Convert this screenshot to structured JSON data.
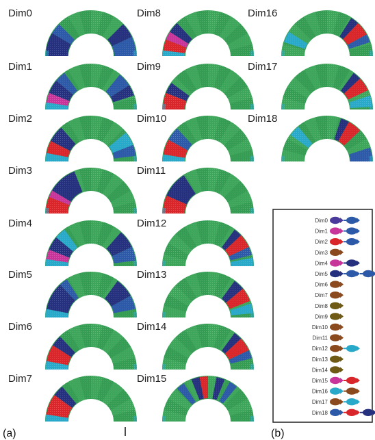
{
  "colors": {
    "base": "#3aa457",
    "navy": "#25307e",
    "blue": "#2d5aa8",
    "red": "#d9262b",
    "magenta": "#c8359a",
    "cyan": "#29a9c9",
    "teal": "#2f8f9a",
    "brown": "#8b4a1e",
    "olive": "#6e5a14",
    "purple": "#4a3a9c"
  },
  "panel_labels": {
    "a": "(a)",
    "b": "(b)"
  },
  "dims": [
    {
      "label": "Dim0",
      "bands": [
        [
          "navy",
          0,
          0.17
        ],
        [
          "blue",
          0.17,
          0.25
        ],
        [
          "navy",
          0.75,
          0.86
        ],
        [
          "blue",
          0.86,
          1.0
        ]
      ]
    },
    {
      "label": "Dim1",
      "bands": [
        [
          "cyan",
          0,
          0.05
        ],
        [
          "magenta",
          0.05,
          0.12
        ],
        [
          "navy",
          0.12,
          0.22
        ],
        [
          "blue",
          0.22,
          0.3
        ],
        [
          "blue",
          0.72,
          0.82
        ],
        [
          "navy",
          0.82,
          0.9
        ]
      ]
    },
    {
      "label": "Dim2",
      "bands": [
        [
          "cyan",
          0,
          0.06
        ],
        [
          "red",
          0.06,
          0.15
        ],
        [
          "navy",
          0.15,
          0.27
        ],
        [
          "cyan",
          0.78,
          0.88
        ],
        [
          "blue",
          0.88,
          0.96
        ]
      ]
    },
    {
      "label": "Dim3",
      "bands": [
        [
          "red",
          0,
          0.12
        ],
        [
          "magenta",
          0.12,
          0.17
        ],
        [
          "navy",
          0.17,
          0.38
        ]
      ]
    },
    {
      "label": "Dim4",
      "bands": [
        [
          "cyan",
          0,
          0.05
        ],
        [
          "magenta",
          0.05,
          0.12
        ],
        [
          "navy",
          0.12,
          0.22
        ],
        [
          "cyan",
          0.22,
          0.3
        ],
        [
          "navy",
          0.73,
          0.86
        ],
        [
          "blue",
          0.86,
          0.96
        ]
      ]
    },
    {
      "label": "Dim5",
      "bands": [
        [
          "cyan",
          0,
          0.06
        ],
        [
          "navy",
          0.06,
          0.26
        ],
        [
          "blue",
          0.26,
          0.32
        ],
        [
          "navy",
          0.7,
          0.84
        ],
        [
          "blue",
          0.84,
          0.94
        ]
      ]
    },
    {
      "label": "Dim6",
      "bands": [
        [
          "cyan",
          0,
          0.06
        ],
        [
          "red",
          0.06,
          0.18
        ],
        [
          "navy",
          0.18,
          0.26
        ]
      ]
    },
    {
      "label": "Dim7",
      "bands": [
        [
          "cyan",
          0,
          0.05
        ],
        [
          "red",
          0.05,
          0.2
        ],
        [
          "navy",
          0.2,
          0.28
        ]
      ]
    },
    {
      "label": "Dim8",
      "bands": [
        [
          "cyan",
          0,
          0.04
        ],
        [
          "red",
          0.04,
          0.12
        ],
        [
          "magenta",
          0.12,
          0.18
        ],
        [
          "navy",
          0.18,
          0.26
        ]
      ]
    },
    {
      "label": "Dim9",
      "bands": [
        [
          "red",
          0,
          0.12
        ],
        [
          "navy",
          0.12,
          0.2
        ]
      ]
    },
    {
      "label": "Dim10",
      "bands": [
        [
          "cyan",
          0,
          0.05
        ],
        [
          "red",
          0.05,
          0.16
        ],
        [
          "blue",
          0.16,
          0.26
        ]
      ]
    },
    {
      "label": "Dim11",
      "bands": [
        [
          "red",
          0,
          0.13
        ],
        [
          "navy",
          0.13,
          0.32
        ]
      ]
    },
    {
      "label": "Dim12",
      "bands": [
        [
          "navy",
          0.7,
          0.76
        ],
        [
          "red",
          0.76,
          0.86
        ],
        [
          "blue",
          0.86,
          0.92
        ],
        [
          "cyan",
          0.94,
          1.0
        ]
      ]
    },
    {
      "label": "Dim13",
      "bands": [
        [
          "navy",
          0.7,
          0.78
        ],
        [
          "red",
          0.78,
          0.88
        ],
        [
          "cyan",
          0.9,
          0.97
        ]
      ]
    },
    {
      "label": "Dim14",
      "bands": [
        [
          "navy",
          0.7,
          0.76
        ],
        [
          "red",
          0.76,
          0.86
        ],
        [
          "blue",
          0.86,
          0.92
        ]
      ]
    },
    {
      "label": "Dim15",
      "bands": [
        [
          "blue",
          0.26,
          0.32
        ],
        [
          "navy",
          0.38,
          0.44
        ],
        [
          "red",
          0.44,
          0.5
        ],
        [
          "navy",
          0.56,
          0.62
        ],
        [
          "blue",
          0.66,
          0.72
        ]
      ]
    },
    {
      "label": "Dim16",
      "bands": [
        [
          "cyan",
          0.1,
          0.18
        ],
        [
          "navy",
          0.68,
          0.74
        ],
        [
          "red",
          0.74,
          0.84
        ],
        [
          "blue",
          0.84,
          0.9
        ]
      ]
    },
    {
      "label": "Dim17",
      "bands": [
        [
          "navy",
          0.7,
          0.76
        ],
        [
          "red",
          0.76,
          0.86
        ],
        [
          "cyan",
          0.9,
          0.98
        ]
      ]
    },
    {
      "label": "Dim18",
      "bands": [
        [
          "cyan",
          0.2,
          0.28
        ],
        [
          "navy",
          0.6,
          0.66
        ],
        [
          "red",
          0.66,
          0.76
        ],
        [
          "blue",
          0.9,
          1.0
        ]
      ]
    }
  ],
  "legend": [
    {
      "label": "Dim0",
      "glyphs": [
        "purple",
        "blue"
      ]
    },
    {
      "label": "Dim1",
      "glyphs": [
        "magenta",
        "blue"
      ]
    },
    {
      "label": "Dim2",
      "glyphs": [
        "red",
        "blue"
      ]
    },
    {
      "label": "Dim3",
      "glyphs": [
        "brown"
      ]
    },
    {
      "label": "Dim4",
      "glyphs": [
        "magenta",
        "navy"
      ]
    },
    {
      "label": "Dim5",
      "glyphs": [
        "navy",
        "blue",
        "blue",
        "blue"
      ]
    },
    {
      "label": "Dim6",
      "glyphs": [
        "brown"
      ]
    },
    {
      "label": "Dim7",
      "glyphs": [
        "brown"
      ]
    },
    {
      "label": "Dim8",
      "glyphs": [
        "olive"
      ]
    },
    {
      "label": "Dim9",
      "glyphs": [
        "olive"
      ]
    },
    {
      "label": "Dim10",
      "glyphs": [
        "brown"
      ]
    },
    {
      "label": "Dim11",
      "glyphs": [
        "brown"
      ]
    },
    {
      "label": "Dim12",
      "glyphs": [
        "brown",
        "cyan"
      ]
    },
    {
      "label": "Dim13",
      "glyphs": [
        "olive"
      ]
    },
    {
      "label": "Dim14",
      "glyphs": [
        "olive"
      ]
    },
    {
      "label": "Dim15",
      "glyphs": [
        "magenta",
        "red"
      ]
    },
    {
      "label": "Dim16",
      "glyphs": [
        "cyan",
        "brown"
      ]
    },
    {
      "label": "Dim17",
      "glyphs": [
        "brown",
        "cyan"
      ]
    },
    {
      "label": "Dim18",
      "glyphs": [
        "blue",
        "red",
        "navy"
      ]
    }
  ]
}
